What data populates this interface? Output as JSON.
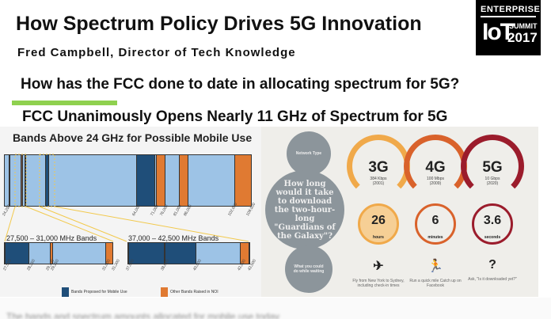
{
  "slide": {
    "title": "How Spectrum Policy Drives 5G Innovation",
    "subtitle": "Fred Campbell, Director of Tech Knowledge",
    "question": "How has the FCC done to date in allocating spectrum for 5G?",
    "heading": "FCC Unanimously Opens Nearly 11 GHz of Spectrum for 5G"
  },
  "logo": {
    "line1": "ENTERPRISE",
    "line2": "IoT",
    "line3": "SUMMIT",
    "line4": "2017"
  },
  "bands_chart": {
    "title": "Bands Above 24 GHz for Possible Mobile Use",
    "ticks": [
      "24,250",
      "64,000",
      "71,000",
      "76,000",
      "81,000",
      "86,000",
      "102,000",
      "109,500"
    ],
    "sub1": {
      "title": "27,500 – 31,000 MHz Bands",
      "ticks": [
        "27,500",
        "28,350",
        "29,100",
        "29,250",
        "31,000",
        "31,300"
      ]
    },
    "sub2": {
      "title": "37,000 – 42,500 MHz Bands",
      "ticks": [
        "37,000",
        "38,600",
        "40,000",
        "42,000",
        "42,500"
      ]
    },
    "legend": [
      "Bands Proposed for Mobile Use",
      "Other Bands Raised in NOI"
    ],
    "colors": {
      "mobile": "#1f4e79",
      "other": "#e07a32",
      "base": "#9dc3e6"
    }
  },
  "infographic": {
    "network_label": "Network Type",
    "question": "How long would it take to download the two-hour-long \"Guardians of the Galaxy\"?",
    "waiting_label": "What you could do while waiting",
    "networks": [
      {
        "name": "3G",
        "speed": "384 Kbps",
        "year": "(2001)",
        "time": "26",
        "unit": "hours",
        "activity": "Fly from New York to Sydney, including check-in times",
        "color": "#f0a94a"
      },
      {
        "name": "4G",
        "speed": "100 Mbps",
        "year": "(2009)",
        "time": "6",
        "unit": "minutes",
        "activity": "Run a quick mile Catch up on Facebook",
        "color": "#d9622b"
      },
      {
        "name": "5G",
        "speed": "10 Gbps",
        "year": "(2020)",
        "time": "3.6",
        "unit": "seconds",
        "activity": "Ask, \"Is it downloaded yet?\"",
        "color": "#9b1c2c"
      }
    ],
    "icons": [
      "airplane-icon",
      "runner-icon",
      "question-icon"
    ],
    "icon_glyphs": [
      "✈",
      "🏃",
      "?"
    ]
  },
  "footer": {
    "text": "The bands and spectrum amounts allocated for mobile use today"
  }
}
